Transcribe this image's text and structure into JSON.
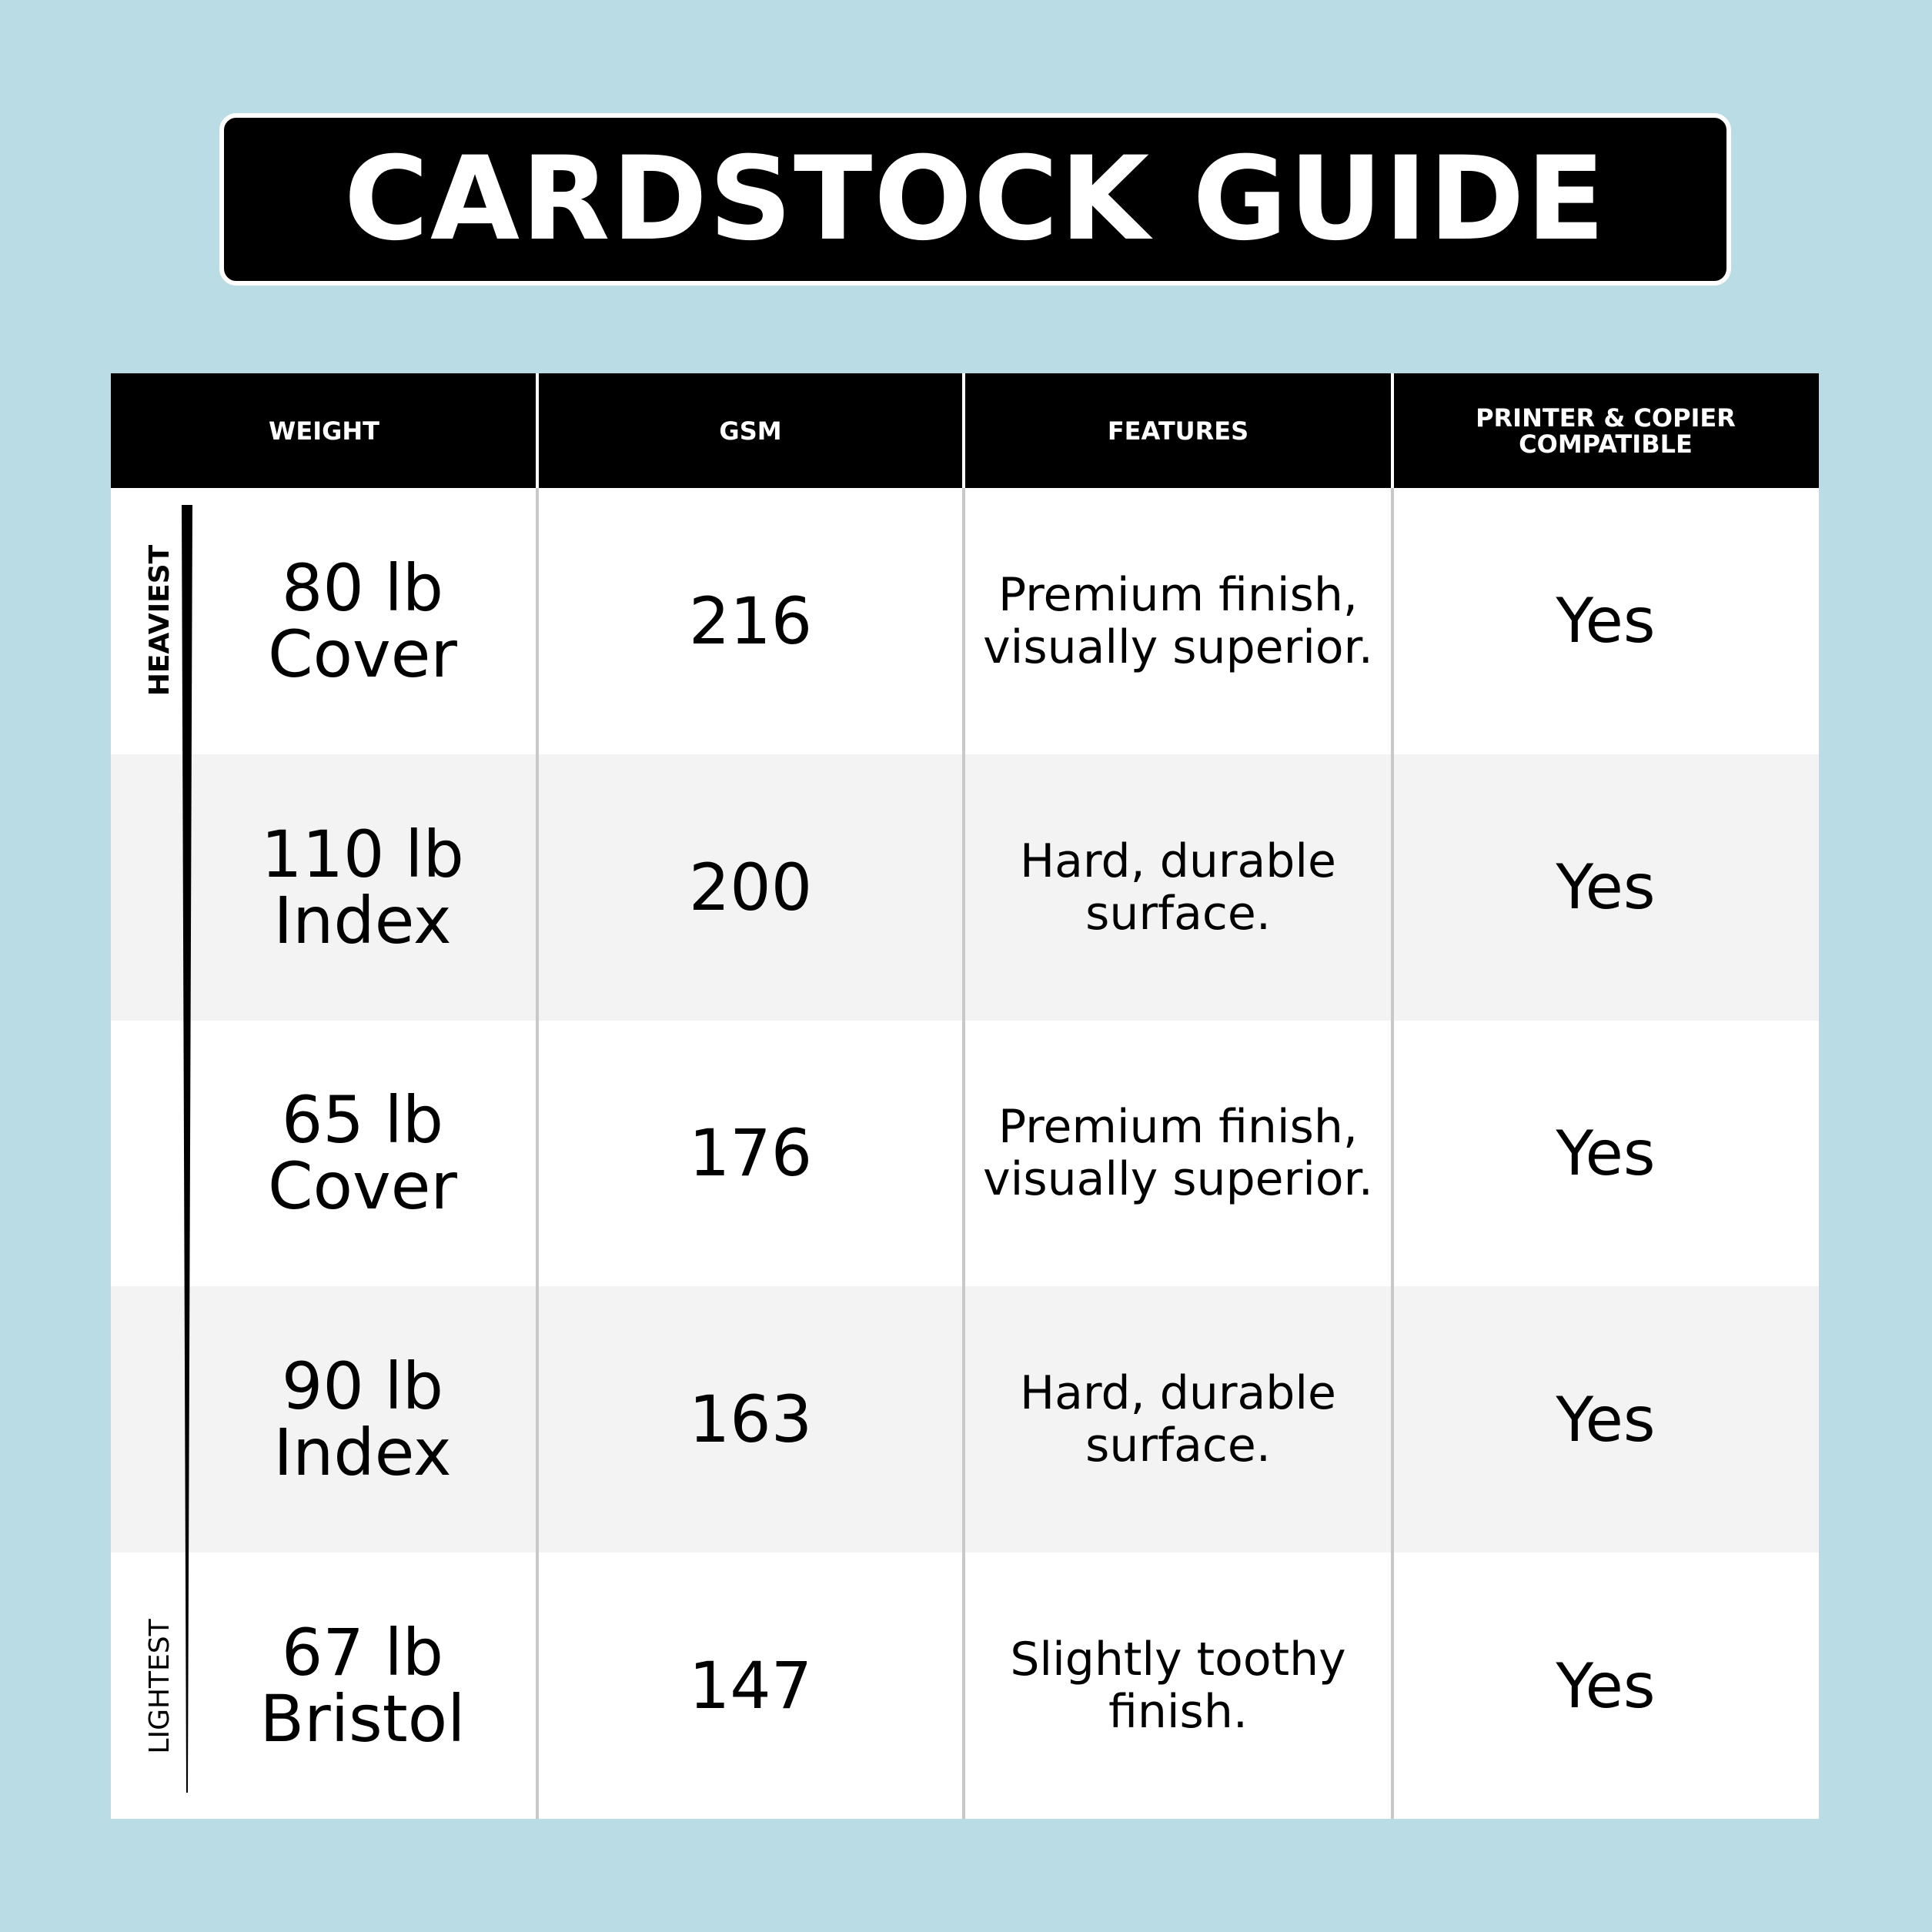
{
  "header": {
    "title": "CARDSTOCK GUIDE"
  },
  "scale": {
    "top": "HEAVIEST",
    "bottom": "LIGHTEST"
  },
  "table": {
    "columns": [
      [
        "WEIGHT"
      ],
      [
        "GSM"
      ],
      [
        "FEATURES"
      ],
      [
        "PRINTER & COPIER",
        "COMPATIBLE"
      ]
    ],
    "rows": [
      [
        [
          "80 lb",
          "Cover"
        ],
        [
          "216"
        ],
        [
          "Premium finish,",
          "visually superior."
        ],
        [
          "Yes"
        ]
      ],
      [
        [
          "110 lb",
          "Index"
        ],
        [
          "200"
        ],
        [
          "Hard, durable",
          "surface."
        ],
        [
          "Yes"
        ]
      ],
      [
        [
          "65 lb",
          "Cover"
        ],
        [
          "176"
        ],
        [
          "Premium finish,",
          "visually superior."
        ],
        [
          "Yes"
        ]
      ],
      [
        [
          "90 lb",
          "Index"
        ],
        [
          "163"
        ],
        [
          "Hard, durable",
          "surface."
        ],
        [
          "Yes"
        ]
      ],
      [
        [
          "67 lb",
          "Bristol"
        ],
        [
          "147"
        ],
        [
          "Slightly toothy",
          "finish."
        ],
        [
          "Yes"
        ]
      ]
    ]
  }
}
